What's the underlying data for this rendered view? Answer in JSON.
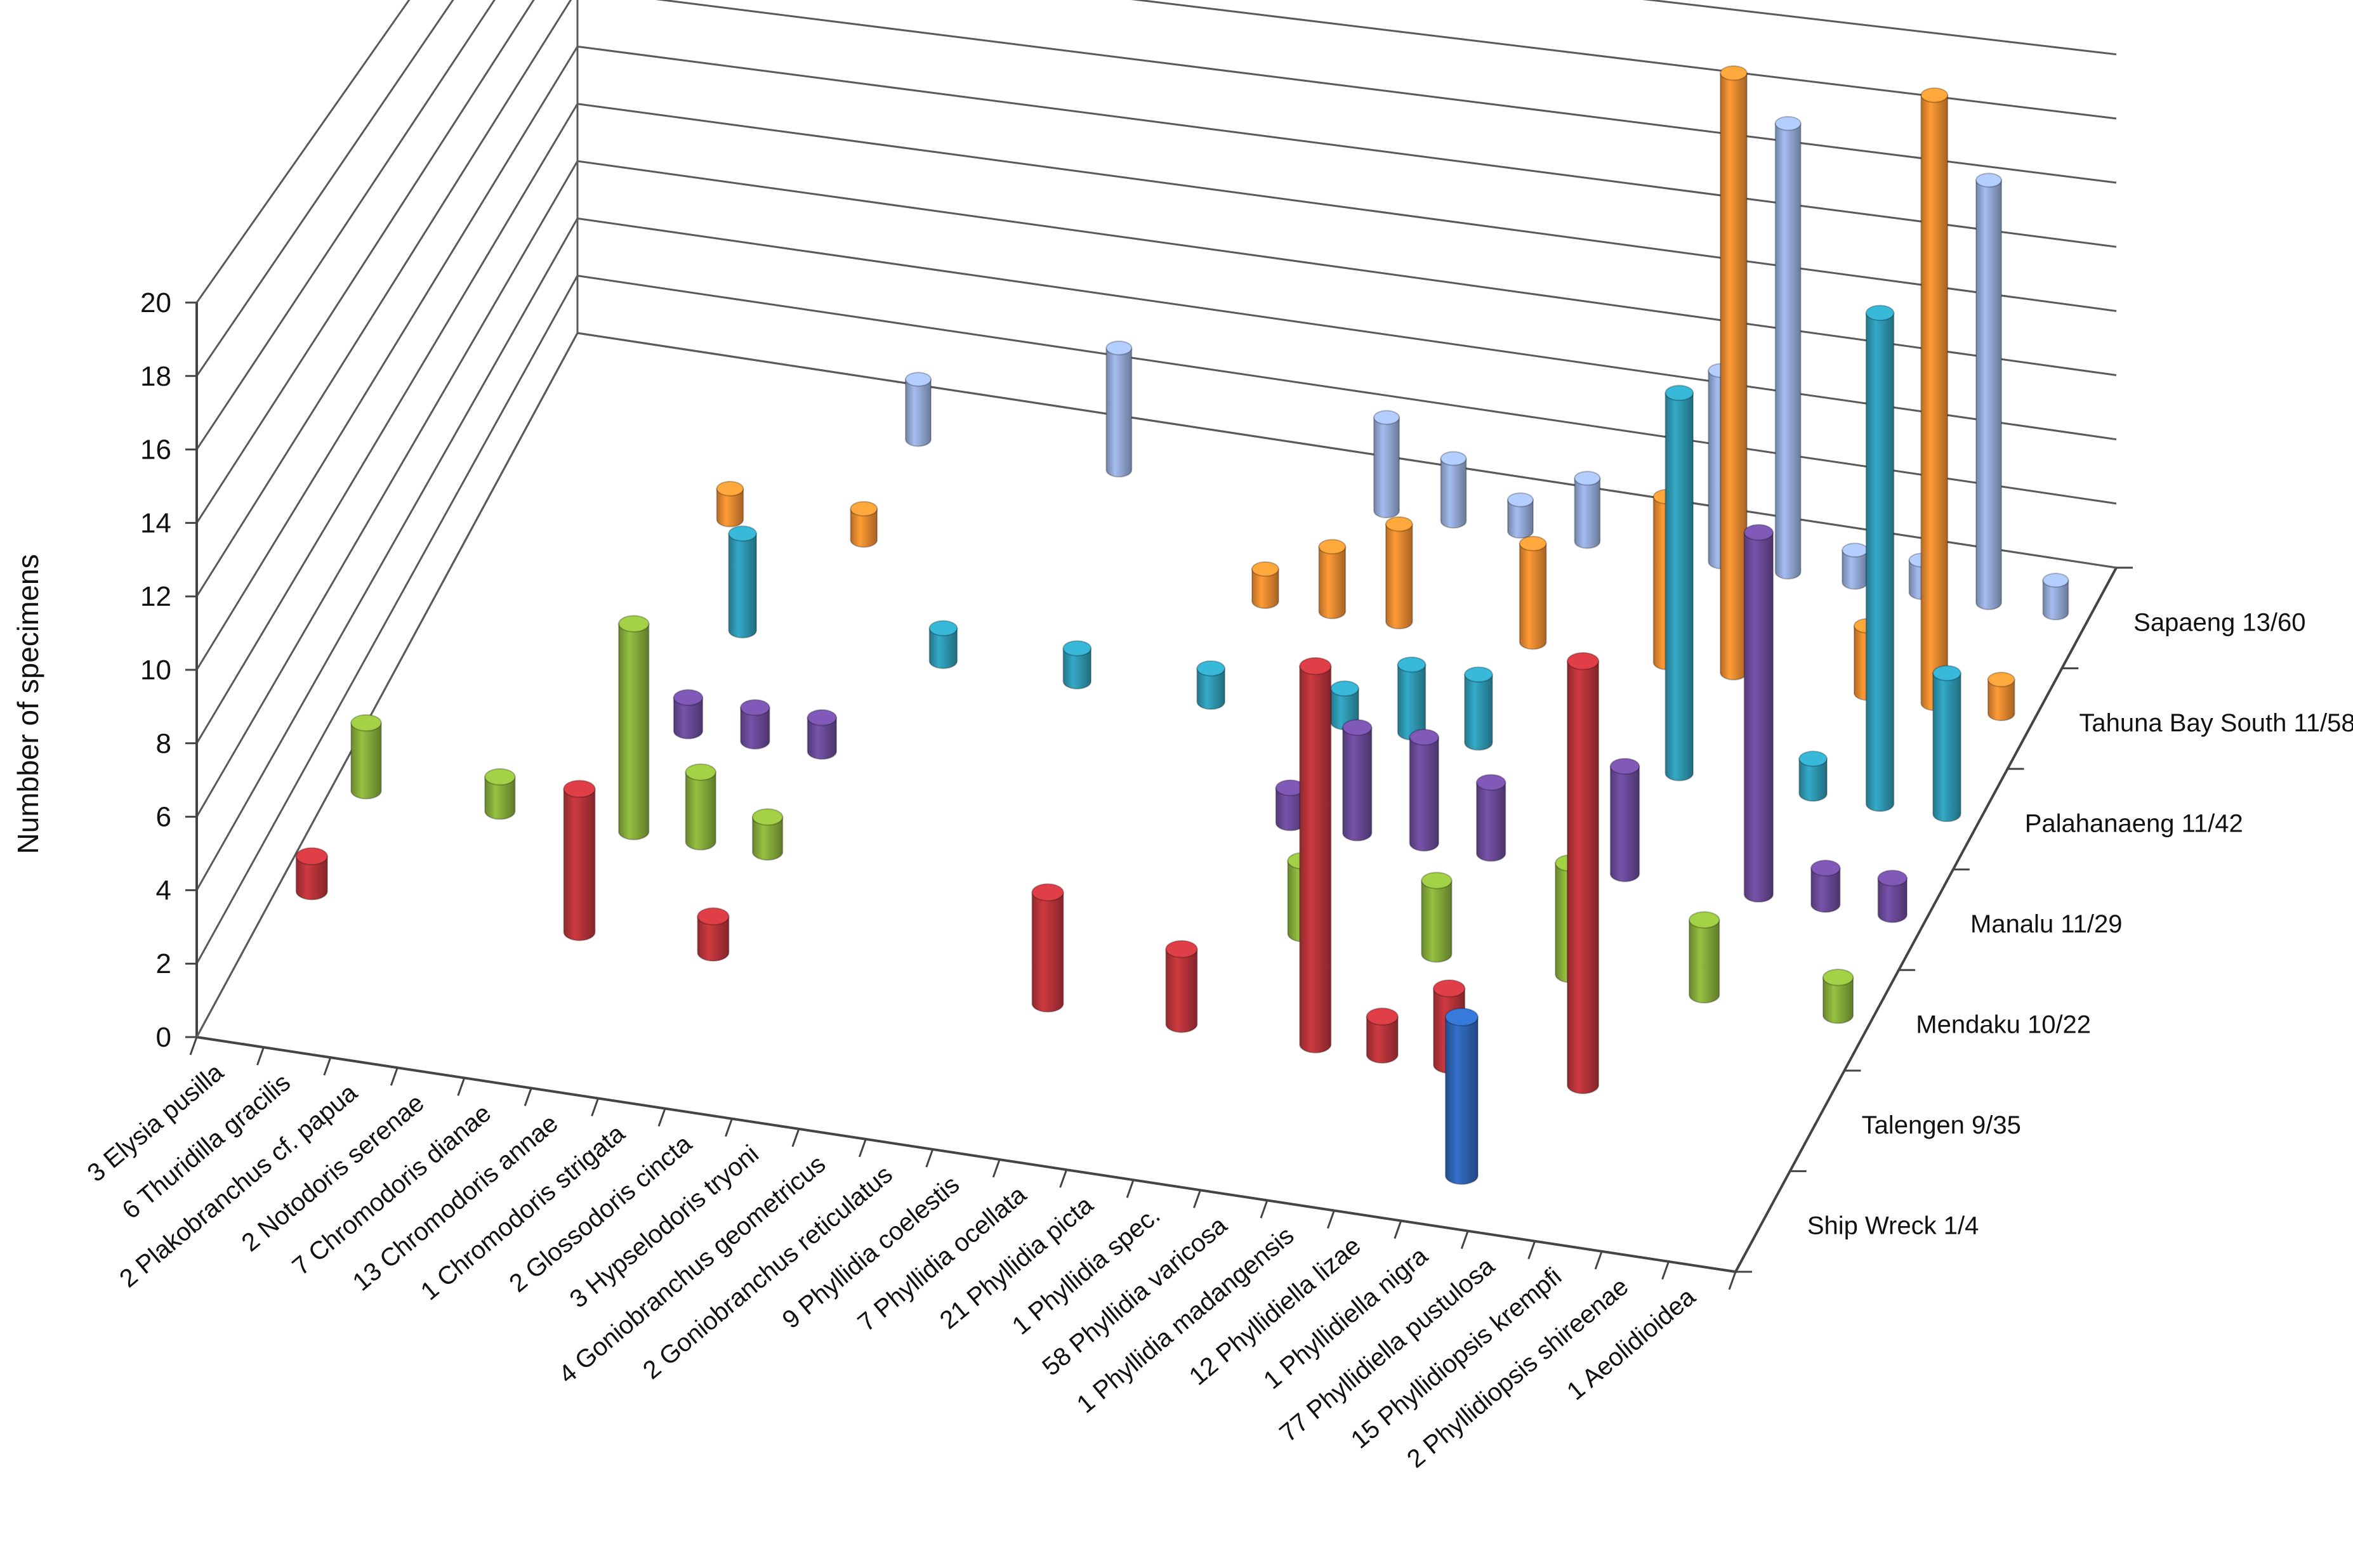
{
  "chart_data": {
    "type": "bar",
    "variant": "3d-column",
    "title": "",
    "xlabel": "",
    "ylabel": "Numbber of specimens",
    "ylim": [
      0,
      20
    ],
    "yticks": [
      "0",
      "2",
      "4",
      "6",
      "8",
      "10",
      "12",
      "14",
      "16",
      "18",
      "20"
    ],
    "categories": [
      "3 Elysia pusilla",
      "6 Thuridilla gracilis",
      "2 Plakobranchus cf. papua",
      "2 Notodoris serenae",
      "7 Chromodoris dianae",
      "13 Chromodoris annae",
      "1 Chromodoris strigata",
      "2 Glossodoris cincta",
      "3 Hypselodoris tryoni",
      "4 Goniobranchus geometricus",
      "2 Goniobranchus reticulatus",
      "9 Phyllidia coelestis",
      "7 Phyllidia ocellata",
      "21 Phyllidia picta",
      "1 Phyllidia spec.",
      "58 Phyllidia varicosa",
      "1 Phyllidia madangensis",
      "12 Phyllidiella lizae",
      "1 Phyllidiella nigra",
      "77 Phyllidiella pustulosa",
      "15 Phyllidiopsis krempfi",
      "2 Phyllidiopsis shireenae",
      "1 Aeolidioidea"
    ],
    "series": [
      {
        "name": "Ship Wreck 1/4",
        "color": "#2e64b4",
        "values": [
          0,
          0,
          0,
          0,
          0,
          0,
          0,
          0,
          0,
          0,
          0,
          0,
          0,
          0,
          0,
          0,
          0,
          0,
          4,
          0,
          0,
          0,
          0
        ]
      },
      {
        "name": "Talengen 9/35",
        "color": "#b8343a",
        "values": [
          1,
          0,
          0,
          0,
          4,
          0,
          1,
          0,
          0,
          0,
          0,
          3,
          0,
          2,
          0,
          10,
          1,
          2,
          0,
          11,
          0,
          0,
          0
        ]
      },
      {
        "name": "Mendaku 10/22",
        "color": "#86ac3a",
        "values": [
          2,
          0,
          1,
          0,
          6,
          2,
          1,
          0,
          0,
          0,
          0,
          0,
          0,
          0,
          2,
          0,
          2,
          0,
          3,
          0,
          2,
          0,
          1
        ]
      },
      {
        "name": "Manalu  11/29",
        "color": "#6a4a98",
        "values": [
          0,
          0,
          0,
          0,
          1,
          1,
          1,
          0,
          0,
          0,
          0,
          0,
          0,
          1,
          3,
          3,
          2,
          0,
          3,
          0,
          10,
          1,
          1
        ]
      },
      {
        "name": "Palahanaeng 11/42",
        "color": "#2e98b2",
        "values": [
          0,
          0,
          0,
          0,
          3,
          0,
          0,
          1,
          0,
          1,
          0,
          1,
          0,
          1,
          2,
          2,
          0,
          0,
          11,
          0,
          1,
          14,
          4
        ]
      },
      {
        "name": "Tahuna Bay South 11/58",
        "color": "#e88a30",
        "values": [
          0,
          0,
          0,
          1,
          0,
          1,
          0,
          0,
          0,
          0,
          0,
          1,
          2,
          3,
          0,
          3,
          0,
          5,
          18,
          0,
          2,
          18,
          1
        ]
      },
      {
        "name": "Sapaeng 13/60",
        "color": "#93a9d6",
        "values": [
          0,
          0,
          0,
          0,
          0,
          2,
          0,
          0,
          4,
          0,
          0,
          0,
          3,
          2,
          1,
          2,
          0,
          6,
          14,
          1,
          1,
          13,
          1
        ]
      }
    ],
    "legend_position": "right-depth",
    "grid": true
  }
}
